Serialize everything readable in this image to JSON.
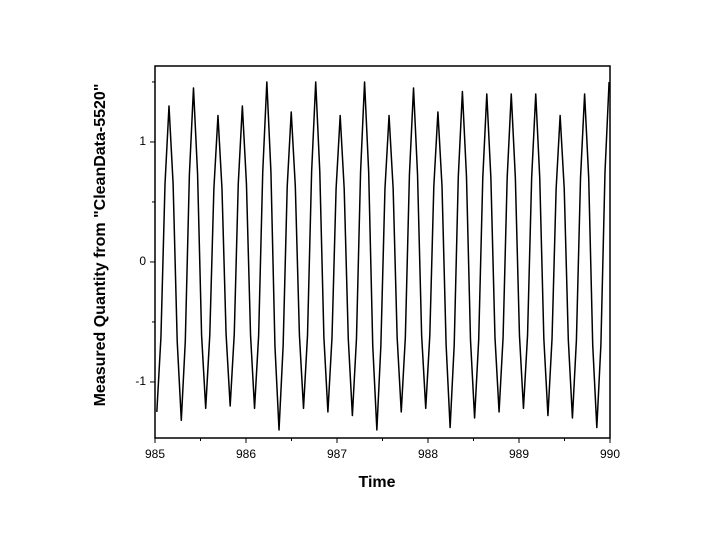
{
  "chart_data": {
    "type": "line",
    "xlabel": "Time",
    "ylabel": "Measured Quantity  from \"CleanData-5520\"",
    "color": "#000000",
    "xlim": [
      985,
      990
    ],
    "xticks": [
      985,
      986,
      987,
      988,
      989,
      990
    ],
    "xminorticks": [
      985.5,
      986.5,
      987.5,
      988.5,
      989.5
    ],
    "ylim": [
      -1.467,
      1.633
    ],
    "yticks": [
      -1,
      0,
      1
    ],
    "yminorticks": [
      -0.5,
      0.5,
      1.5
    ],
    "x": [
      985.02,
      985.065,
      985.11,
      985.154,
      985.199,
      985.244,
      985.289,
      985.333,
      985.378,
      985.423,
      985.468,
      985.512,
      985.557,
      985.602,
      985.647,
      985.692,
      985.736,
      985.781,
      985.826,
      985.871,
      985.915,
      985.96,
      986.005,
      986.05,
      986.094,
      986.139,
      986.184,
      986.229,
      986.274,
      986.318,
      986.363,
      986.408,
      986.453,
      986.497,
      986.542,
      986.587,
      986.632,
      986.676,
      986.721,
      986.766,
      986.811,
      986.856,
      986.9,
      986.945,
      986.99,
      987.035,
      987.079,
      987.124,
      987.169,
      987.214,
      987.259,
      987.303,
      987.348,
      987.393,
      987.438,
      987.482,
      987.527,
      987.572,
      987.617,
      987.661,
      987.706,
      987.751,
      987.796,
      987.841,
      987.885,
      987.93,
      987.975,
      988.02,
      988.064,
      988.109,
      988.154,
      988.199,
      988.243,
      988.288,
      988.333,
      988.378,
      988.423,
      988.467,
      988.512,
      988.557,
      988.602,
      988.646,
      988.691,
      988.736,
      988.781,
      988.825,
      988.87,
      988.915,
      988.96,
      989.005,
      989.049,
      989.094,
      989.139,
      989.184,
      989.228,
      989.273,
      989.318,
      989.363,
      989.408,
      989.452,
      989.497,
      989.542,
      989.587,
      989.631,
      989.676,
      989.721,
      989.766,
      989.81,
      989.855,
      989.9,
      989.945,
      989.99
    ],
    "values": [
      -1.25,
      -0.63,
      0.65,
      1.3,
      0.65,
      -0.66,
      -1.32,
      -0.66,
      0.73,
      1.45,
      0.73,
      -0.61,
      -1.22,
      -0.61,
      0.61,
      1.22,
      0.61,
      -0.6,
      -1.2,
      -0.6,
      0.65,
      1.3,
      0.65,
      -0.61,
      -1.22,
      -0.61,
      0.75,
      1.5,
      0.75,
      -0.7,
      -1.4,
      -0.7,
      0.63,
      1.25,
      0.63,
      -0.61,
      -1.22,
      -0.61,
      0.75,
      1.5,
      0.75,
      -0.63,
      -1.25,
      -0.63,
      0.61,
      1.22,
      0.61,
      -0.64,
      -1.28,
      -0.64,
      0.75,
      1.5,
      0.75,
      -0.7,
      -1.4,
      -0.7,
      0.61,
      1.22,
      0.61,
      -0.63,
      -1.25,
      -0.63,
      0.73,
      1.45,
      0.73,
      -0.61,
      -1.22,
      -0.61,
      0.63,
      1.25,
      0.63,
      -0.69,
      -1.38,
      -0.69,
      0.71,
      1.42,
      0.71,
      -0.65,
      -1.3,
      -0.65,
      0.7,
      1.4,
      0.7,
      -0.63,
      -1.25,
      -0.63,
      0.7,
      1.4,
      0.7,
      -0.61,
      -1.22,
      -0.61,
      0.7,
      1.4,
      0.7,
      -0.64,
      -1.28,
      -0.64,
      0.61,
      1.22,
      0.61,
      -0.65,
      -1.3,
      -0.65,
      0.7,
      1.4,
      0.7,
      -0.69,
      -1.38,
      -0.69,
      0.75,
      1.5
    ]
  }
}
